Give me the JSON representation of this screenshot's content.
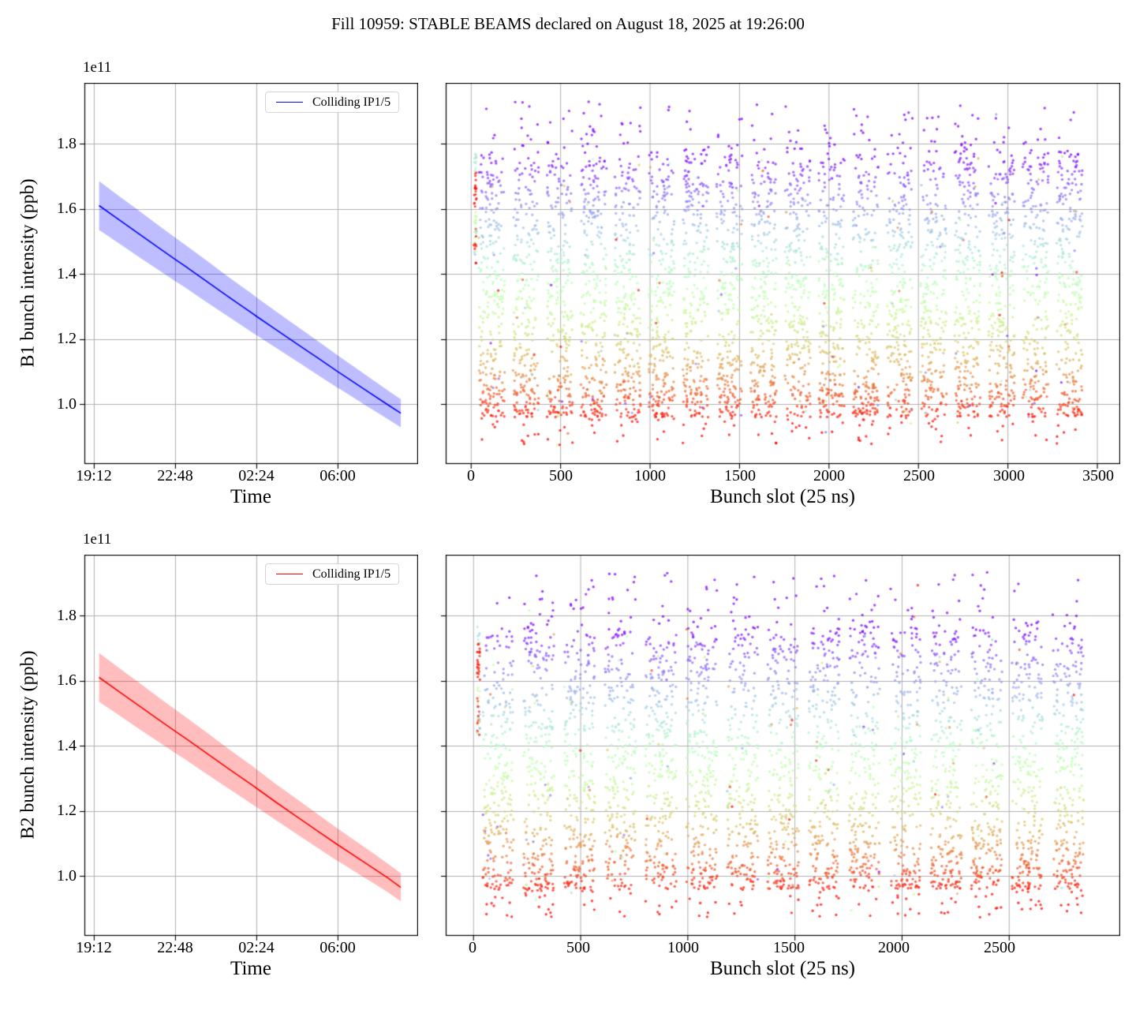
{
  "title": "Fill 10959: STABLE BEAMS declared on August 18, 2025 at 19:26:00",
  "offset_label": "1e11",
  "legend_label": "Colliding IP1/5",
  "colors": {
    "b1_line": "#0000ff",
    "b1_band": "rgba(0,0,255,0.26)",
    "b2_line": "#ff0000",
    "b2_band": "rgba(255,0,0,0.26)",
    "grid": "#b0b0b0",
    "axis": "#000000",
    "scatter_low": "red",
    "scatter_high": "violet"
  },
  "chart_data": [
    {
      "id": "b1_time",
      "type": "line",
      "ylabel": "B1 bunch intensity (ppb)",
      "xlabel": "Time",
      "y_offset_label": "1e11",
      "legend": [
        {
          "label": "Colliding IP1/5",
          "color": "#0000ff"
        }
      ],
      "xtick_labels": [
        "19:12",
        "22:48",
        "02:24",
        "06:00"
      ],
      "xtick_minutes": [
        0,
        216,
        432,
        648
      ],
      "ytick_labels": [
        "1.0",
        "1.2",
        "1.4",
        "1.6",
        "1.8"
      ],
      "ytick_values": [
        1.0,
        1.2,
        1.4,
        1.6,
        1.8
      ],
      "xlim_minutes": [
        -25,
        862
      ],
      "ylim": [
        0.816,
        1.987
      ],
      "units": "1e11 ppb (protons per bunch)",
      "series": {
        "name": "Colliding IP1/5",
        "t_minutes": [
          14,
          60,
          120,
          180,
          216,
          240,
          300,
          360,
          420,
          432,
          480,
          540,
          600,
          648,
          660,
          720,
          780,
          816
        ],
        "mean": [
          1.61,
          1.572,
          1.523,
          1.474,
          1.445,
          1.426,
          1.377,
          1.328,
          1.28,
          1.27,
          1.232,
          1.185,
          1.138,
          1.1,
          1.091,
          1.045,
          0.999,
          0.972
        ],
        "upper": [
          1.685,
          1.645,
          1.594,
          1.542,
          1.512,
          1.492,
          1.441,
          1.389,
          1.339,
          1.328,
          1.288,
          1.239,
          1.19,
          1.15,
          1.14,
          1.092,
          1.043,
          1.015
        ],
        "lower": [
          1.535,
          1.499,
          1.452,
          1.406,
          1.378,
          1.36,
          1.313,
          1.267,
          1.221,
          1.212,
          1.176,
          1.131,
          1.086,
          1.05,
          1.042,
          0.998,
          0.955,
          0.929
        ]
      }
    },
    {
      "id": "b1_slots",
      "type": "scatter",
      "xlabel": "Bunch slot (25 ns)",
      "xtick_labels": [
        "0",
        "500",
        "1000",
        "1500",
        "2000",
        "2500",
        "3000",
        "3500"
      ],
      "xtick_values": [
        0,
        500,
        1000,
        1500,
        2000,
        2500,
        3000,
        3500
      ],
      "ytick_values": [
        1.0,
        1.2,
        1.4,
        1.6,
        1.8
      ],
      "xlim": [
        -140,
        3630
      ],
      "ylim": [
        0.816,
        1.987
      ],
      "colormap": "rainbow, violet = high intensity (~1.8e11) to red = low (~0.95e11)",
      "point_alpha": 0.72,
      "seed": 7,
      "trains": {
        "count": 18,
        "first_start_slot": 45,
        "train_length_slots": 144,
        "period_slots": 190,
        "points_per_train": 260,
        "intensity_main_range": [
          0.96,
          1.74
        ],
        "upper_tail_to": 1.93,
        "lower_tail_to": 0.875
      },
      "leading_strip": {
        "slot_range": [
          18,
          32
        ],
        "intensity_range": [
          1.43,
          1.77
        ],
        "points": 64
      }
    },
    {
      "id": "b2_time",
      "type": "line",
      "ylabel": "B2 bunch intensity (ppb)",
      "xlabel": "Time",
      "y_offset_label": "1e11",
      "legend": [
        {
          "label": "Colliding IP1/5",
          "color": "#ff0000"
        }
      ],
      "xtick_labels": [
        "19:12",
        "22:48",
        "02:24",
        "06:00"
      ],
      "xtick_minutes": [
        0,
        216,
        432,
        648
      ],
      "ytick_labels": [
        "1.0",
        "1.2",
        "1.4",
        "1.6",
        "1.8"
      ],
      "ytick_values": [
        1.0,
        1.2,
        1.4,
        1.6,
        1.8
      ],
      "xlim_minutes": [
        -25,
        862
      ],
      "ylim": [
        0.816,
        1.987
      ],
      "units": "1e11 ppb (protons per bunch)",
      "series": {
        "name": "Colliding IP1/5",
        "t_minutes": [
          14,
          60,
          120,
          180,
          216,
          240,
          300,
          360,
          420,
          432,
          480,
          540,
          600,
          648,
          660,
          720,
          780,
          816
        ],
        "mean": [
          1.61,
          1.572,
          1.523,
          1.474,
          1.445,
          1.426,
          1.377,
          1.328,
          1.28,
          1.27,
          1.23,
          1.182,
          1.134,
          1.096,
          1.087,
          1.041,
          0.995,
          0.965
        ],
        "upper": [
          1.685,
          1.645,
          1.594,
          1.542,
          1.512,
          1.492,
          1.441,
          1.389,
          1.339,
          1.328,
          1.286,
          1.236,
          1.186,
          1.146,
          1.136,
          1.088,
          1.039,
          1.008
        ],
        "lower": [
          1.535,
          1.499,
          1.452,
          1.406,
          1.378,
          1.36,
          1.313,
          1.267,
          1.221,
          1.212,
          1.174,
          1.128,
          1.082,
          1.046,
          1.038,
          0.994,
          0.951,
          0.922
        ]
      }
    },
    {
      "id": "b2_slots",
      "type": "scatter",
      "xlabel": "Bunch slot (25 ns)",
      "xtick_labels": [
        "0",
        "500",
        "1000",
        "1500",
        "2000",
        "2500"
      ],
      "xtick_values": [
        0,
        500,
        1000,
        1500,
        2000,
        2500
      ],
      "ytick_values": [
        1.0,
        1.2,
        1.4,
        1.6,
        1.8
      ],
      "xlim": [
        -128,
        3020
      ],
      "ylim": [
        0.816,
        1.987
      ],
      "colormap": "rainbow, violet = high intensity (~1.8e11) to red = low (~0.95e11)",
      "point_alpha": 0.72,
      "seed": 13,
      "trains": {
        "count": 15,
        "first_start_slot": 45,
        "train_length_slots": 144,
        "period_slots": 190,
        "points_per_train": 260,
        "intensity_main_range": [
          0.96,
          1.74
        ],
        "upper_tail_to": 1.935,
        "lower_tail_to": 0.875
      },
      "leading_strip": {
        "slot_range": [
          18,
          32
        ],
        "intensity_range": [
          1.43,
          1.77
        ],
        "points": 64
      }
    }
  ]
}
